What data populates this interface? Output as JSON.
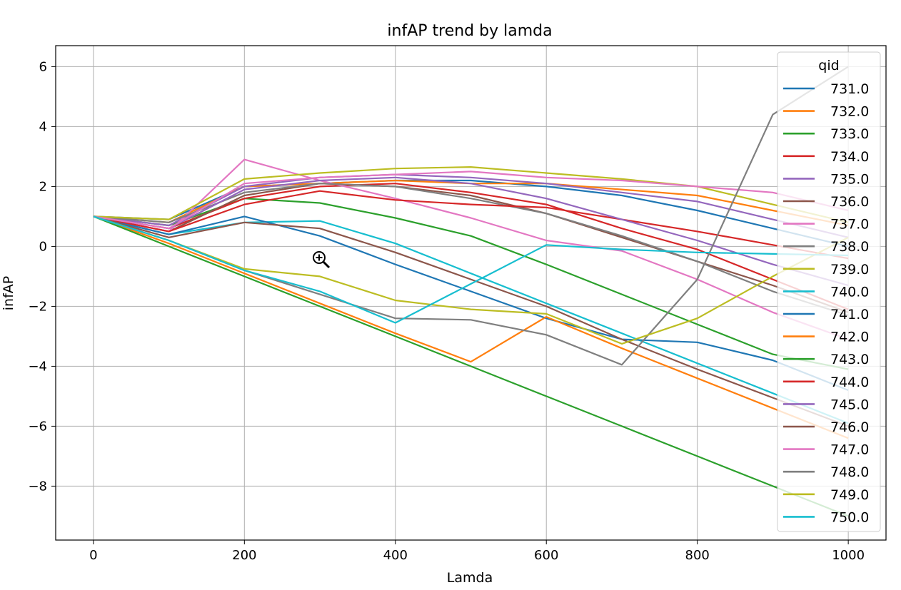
{
  "chart_data": {
    "type": "line",
    "title": "infAP trend by lamda",
    "xlabel": "Lamda",
    "ylabel": "infAP",
    "xlim": [
      -50,
      1050
    ],
    "ylim": [
      -9.8,
      6.7
    ],
    "xticks": [
      0,
      200,
      400,
      600,
      800,
      1000
    ],
    "yticks": [
      -8,
      -6,
      -4,
      -2,
      0,
      2,
      4,
      6
    ],
    "xtick_labels": [
      "0",
      "200",
      "400",
      "600",
      "800",
      "1000"
    ],
    "ytick_labels": [
      "−8",
      "−6",
      "−4",
      "−2",
      "0",
      "2",
      "4",
      "6"
    ],
    "grid": true,
    "legend_title": "qid",
    "legend_position": "top-right",
    "x": [
      0,
      100,
      200,
      300,
      400,
      500,
      600,
      700,
      800,
      900,
      1000
    ],
    "series": [
      {
        "name": "731.0",
        "color": "#1f77b4",
        "values": [
          1.0,
          0.9,
          2.0,
          2.1,
          2.2,
          2.2,
          2.0,
          1.7,
          1.2,
          0.6,
          0.0
        ]
      },
      {
        "name": "732.0",
        "color": "#ff7f0e",
        "values": [
          1.0,
          0.8,
          2.0,
          2.1,
          2.2,
          2.1,
          2.1,
          1.9,
          1.7,
          1.2,
          0.7
        ]
      },
      {
        "name": "733.0",
        "color": "#2ca02c",
        "values": [
          1.0,
          0.7,
          1.6,
          1.45,
          0.95,
          0.35,
          -0.6,
          -1.6,
          -2.6,
          -3.6,
          -4.1
        ]
      },
      {
        "name": "734.0",
        "color": "#d62728",
        "values": [
          1.0,
          0.6,
          1.6,
          2.0,
          2.1,
          1.8,
          1.4,
          0.6,
          -0.1,
          -1.1,
          -2.1
        ]
      },
      {
        "name": "735.0",
        "color": "#9467bd",
        "values": [
          1.0,
          0.7,
          2.0,
          2.3,
          2.4,
          2.3,
          2.1,
          1.8,
          1.5,
          0.9,
          0.3
        ]
      },
      {
        "name": "736.0",
        "color": "#8c564b",
        "values": [
          1.0,
          0.5,
          1.7,
          2.1,
          2.0,
          1.7,
          1.1,
          0.3,
          -0.5,
          -1.3,
          -2.2
        ]
      },
      {
        "name": "737.0",
        "color": "#e377c2",
        "values": [
          1.0,
          0.5,
          2.9,
          2.2,
          1.6,
          0.95,
          0.2,
          -0.15,
          -1.1,
          -2.2,
          -3.1
        ]
      },
      {
        "name": "738.0",
        "color": "#7f7f7f",
        "values": [
          1.0,
          0.8,
          1.8,
          2.1,
          2.0,
          1.6,
          1.1,
          0.35,
          -0.5,
          -1.5,
          -2.3
        ]
      },
      {
        "name": "739.0",
        "color": "#bcbd22",
        "values": [
          1.0,
          0.9,
          2.25,
          2.45,
          2.6,
          2.65,
          2.45,
          2.25,
          2.0,
          1.4,
          0.8
        ]
      },
      {
        "name": "740.0",
        "color": "#17becf",
        "values": [
          1.0,
          0.4,
          0.8,
          0.85,
          0.1,
          -0.9,
          -1.9,
          -2.9,
          -3.9,
          -4.9,
          -5.9
        ]
      },
      {
        "name": "741.0",
        "color": "#1f77b4",
        "values": [
          1.0,
          0.4,
          1.0,
          0.35,
          -0.6,
          -1.5,
          -2.4,
          -3.1,
          -3.2,
          -3.8,
          -4.8
        ]
      },
      {
        "name": "742.0",
        "color": "#ff7f0e",
        "values": [
          1.0,
          0.1,
          -0.9,
          -1.9,
          -2.9,
          -3.85,
          -2.35,
          -3.4,
          -4.4,
          -5.4,
          -6.4
        ]
      },
      {
        "name": "743.0",
        "color": "#2ca02c",
        "values": [
          1.0,
          0.0,
          -1.0,
          -2.0,
          -3.0,
          -4.0,
          -5.0,
          -6.0,
          -7.0,
          -8.0,
          -9.0
        ]
      },
      {
        "name": "744.0",
        "color": "#d62728",
        "values": [
          1.0,
          0.5,
          1.4,
          1.85,
          1.55,
          1.4,
          1.3,
          0.9,
          0.5,
          0.05,
          -0.4
        ]
      },
      {
        "name": "745.0",
        "color": "#9467bd",
        "values": [
          1.0,
          0.6,
          1.9,
          2.2,
          2.3,
          2.1,
          1.6,
          0.9,
          0.2,
          -0.6,
          -1.3
        ]
      },
      {
        "name": "746.0",
        "color": "#8c564b",
        "values": [
          1.0,
          0.3,
          0.8,
          0.6,
          -0.2,
          -1.1,
          -2.0,
          -3.1,
          -4.1,
          -5.05,
          -6.0
        ]
      },
      {
        "name": "747.0",
        "color": "#e377c2",
        "values": [
          1.0,
          0.6,
          2.1,
          2.3,
          2.4,
          2.5,
          2.3,
          2.2,
          2.0,
          1.8,
          1.2
        ]
      },
      {
        "name": "748.0",
        "color": "#7f7f7f",
        "values": [
          1.0,
          0.2,
          -0.8,
          -1.6,
          -2.4,
          -2.45,
          -2.95,
          -3.95,
          -1.1,
          4.4,
          6.0
        ]
      },
      {
        "name": "749.0",
        "color": "#bcbd22",
        "values": [
          1.0,
          0.2,
          -0.75,
          -1.0,
          -1.8,
          -2.1,
          -2.25,
          -3.25,
          -2.4,
          -1.0,
          0.3
        ]
      },
      {
        "name": "750.0",
        "color": "#17becf",
        "values": [
          1.0,
          0.2,
          -0.8,
          -1.5,
          -2.55,
          -1.25,
          0.05,
          -0.1,
          -0.2,
          -0.25,
          -0.3
        ]
      }
    ]
  }
}
